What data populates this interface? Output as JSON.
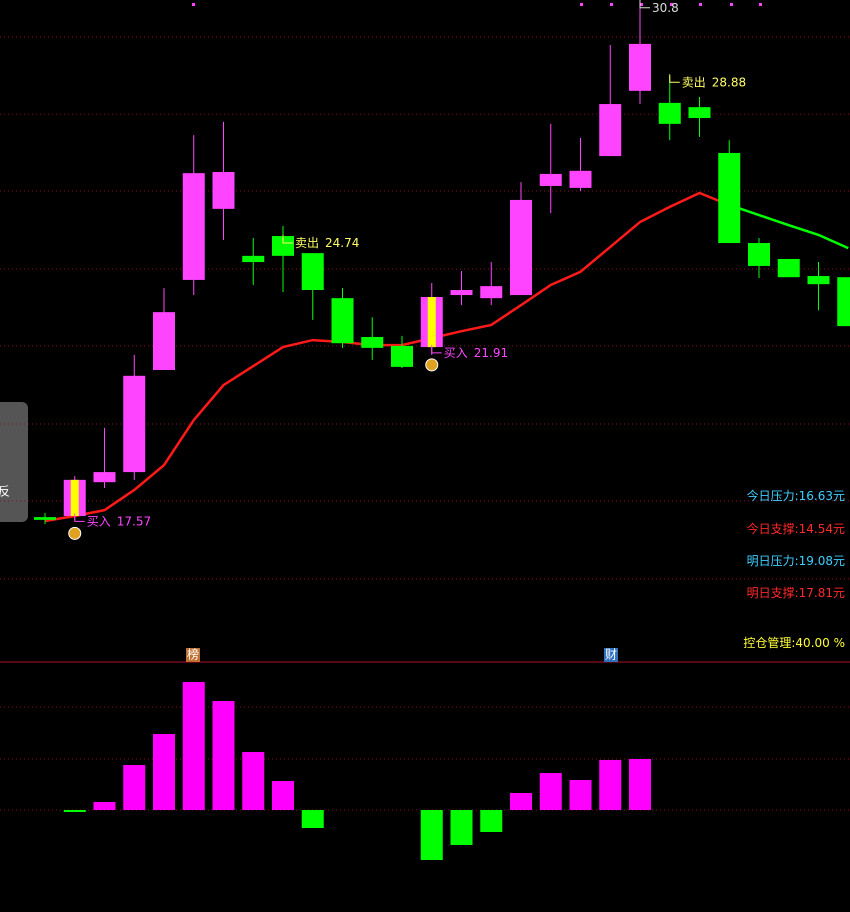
{
  "chart_data": [
    {
      "type": "candlestick",
      "open": [
        17.68,
        17.71,
        18.58,
        18.84,
        21.47,
        23.79,
        25.62,
        24.41,
        24.92,
        24.48,
        23.32,
        22.32,
        22.09,
        22.06,
        23.4,
        23.32,
        23.4,
        26.21,
        26.16,
        26.98,
        28.66,
        28.35,
        28.24,
        27.06,
        24.74,
        24.33,
        23.89,
        23.86
      ],
      "high": [
        17.79,
        18.74,
        19.98,
        21.86,
        23.58,
        27.52,
        27.86,
        24.87,
        25.18,
        24.48,
        23.58,
        22.83,
        22.35,
        23.71,
        24.02,
        24.25,
        26.31,
        27.81,
        27.45,
        29.84,
        30.8,
        29.04,
        28.5,
        27.39,
        24.87,
        24.33,
        24.25,
        23.86
      ],
      "low": [
        17.5,
        17.61,
        18.43,
        18.64,
        21.47,
        23.4,
        24.82,
        23.66,
        23.48,
        22.76,
        22.04,
        21.73,
        21.52,
        21.86,
        23.14,
        23.14,
        23.4,
        25.51,
        26.08,
        26.98,
        28.32,
        27.39,
        27.47,
        24.74,
        23.84,
        23.86,
        23.01,
        22.6
      ],
      "close": [
        17.61,
        18.64,
        18.84,
        21.32,
        22.96,
        26.54,
        26.57,
        24.25,
        24.41,
        23.53,
        22.16,
        22.04,
        21.55,
        23.35,
        23.53,
        23.63,
        25.85,
        26.52,
        26.6,
        28.32,
        29.87,
        27.81,
        27.96,
        24.74,
        24.15,
        23.86,
        23.68,
        22.6
      ],
      "up_color": "#ff44ff",
      "down_color": "#00ff00",
      "series": [
        {
          "color": "#ff1a1a",
          "values": [
            17.58,
            17.71,
            17.86,
            18.38,
            19.02,
            20.18,
            21.08,
            21.57,
            22.06,
            22.24,
            22.19,
            22.11,
            22.11,
            22.29,
            22.47,
            22.63,
            23.14,
            23.66,
            24.0,
            24.64,
            25.28,
            25.67,
            26.03,
            25.72,
            null,
            null,
            null,
            null
          ]
        },
        {
          "color": "#00ff00",
          "values": [
            null,
            null,
            null,
            null,
            null,
            null,
            null,
            null,
            null,
            null,
            null,
            null,
            null,
            null,
            null,
            null,
            null,
            null,
            null,
            null,
            null,
            null,
            null,
            25.72,
            25.46,
            25.2,
            24.95,
            24.61
          ]
        }
      ],
      "ylim": [
        14,
        31
      ],
      "grid": [
        30.05,
        28.06,
        26.08,
        24.07,
        22.09,
        20.08,
        18.1,
        16.09
      ],
      "annotations": [
        {
          "text": "买入",
          "value": 17.57,
          "color": "#ff44ff"
        },
        {
          "text": "卖出",
          "value": 24.74,
          "color": "#ffff66"
        },
        {
          "text": "买入",
          "value": 21.91,
          "color": "#ff44ff"
        },
        {
          "text": "",
          "value": 30.8,
          "color": "#dddddd"
        },
        {
          "text": "卖出",
          "value": 28.88,
          "color": "#ffff66"
        }
      ],
      "side_labels": [
        {
          "label": "今日压力:",
          "value": "16.63元",
          "color": "#3fd0ff"
        },
        {
          "label": "今日支撑:",
          "value": "14.54元",
          "color": "#ff2a2a"
        },
        {
          "label": "明日压力:",
          "value": "19.08元",
          "color": "#3fd0ff"
        },
        {
          "label": "明日支撑:",
          "value": "17.81元",
          "color": "#ff2a2a"
        },
        {
          "label": "控仓管理:",
          "value": "40.00 %",
          "color": "#ffff33"
        }
      ],
      "tab_text": "反"
    },
    {
      "type": "bar",
      "values": [
        null,
        -0.2,
        0.8,
        4.5,
        7.6,
        12.8,
        10.9,
        5.8,
        2.9,
        -1.8,
        null,
        null,
        null,
        -5.0,
        -3.5,
        -2.2,
        1.7,
        3.7,
        3.0,
        5.0,
        5.1,
        null,
        null,
        null,
        null,
        null,
        null,
        null
      ],
      "up_color": "#ff00ff",
      "down_color": "#00ff00",
      "ylim": [
        -10.2,
        14.8
      ],
      "grid": [
        0,
        5.1,
        10.3
      ],
      "markers": [
        "榜",
        "财"
      ]
    }
  ]
}
